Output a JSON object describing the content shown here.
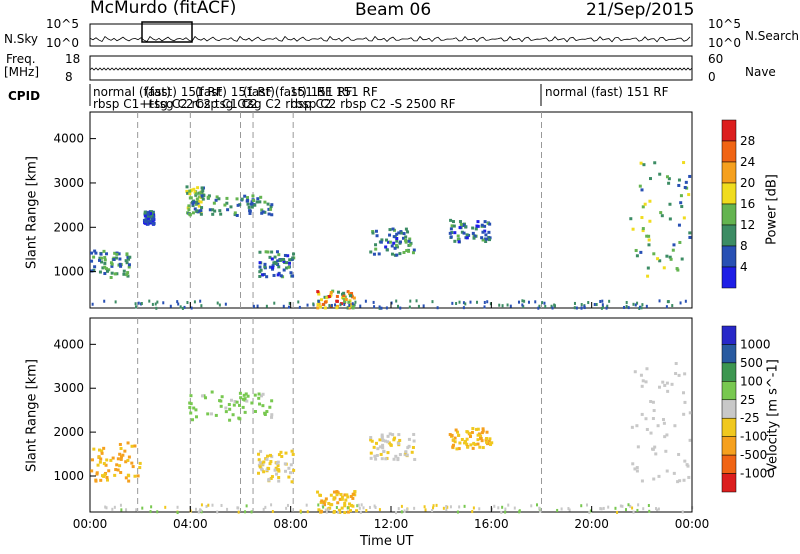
{
  "header": {
    "station": "McMurdo (fitACF)",
    "beam": "Beam 06",
    "date": "21/Sep/2015"
  },
  "strip_labels": {
    "nsky": "N.Sky",
    "nsearch": "N.Search",
    "freq_top": "Freq.",
    "freq_unit": "[MHz]",
    "nave": "Nave",
    "cpid": "CPID",
    "nsky_ticks": [
      "10^5",
      "10^0"
    ],
    "nsearch_ticks": [
      "10^5",
      "10^0"
    ],
    "freq_ticks": [
      "18",
      "8"
    ],
    "nave_ticks": [
      "60",
      "0"
    ]
  },
  "cpid_segments": [
    {
      "line1": "normal (fast)",
      "line2": "rbsp C1+tsg C2 rbsp C1 C2"
    },
    {
      "line1": "(fast) 151 RF",
      "line2": "+tsg C2"
    },
    {
      "line1": "(fast) 151 RF",
      "line2": "C2 tsg C2"
    },
    {
      "line1": "(fast)(fast) 151 RF",
      "line2": "tsg C2 rbsp C2"
    },
    {
      "line1": "151 RF 151 RF",
      "line2": "rbsp C2 rbsp C2 -S 2500 RF"
    },
    {
      "line1": "normal (fast) 151 RF",
      "line2": ""
    }
  ],
  "axes": {
    "ylabel": "Slant Range [km]",
    "xlabel": "Time UT",
    "x_ticks": [
      "00:00",
      "04:00",
      "08:00",
      "12:00",
      "16:00",
      "20:00",
      "00:00"
    ],
    "y_ticks": [
      "1000",
      "2000",
      "3000",
      "4000"
    ]
  },
  "colorbars": {
    "power": {
      "label": "Power [dB]",
      "ticks": [
        "4",
        "8",
        "12",
        "16",
        "20",
        "24",
        "28"
      ],
      "colors": [
        "#1e1ee6",
        "#2850b4",
        "#3c8c64",
        "#64b450",
        "#f0dc1e",
        "#f5a01e",
        "#f06414",
        "#dc1e1e"
      ]
    },
    "velocity": {
      "label": "Velocity [m s^-1]",
      "ticks": [
        "1000",
        "500",
        "100",
        "25",
        "-25",
        "-100",
        "-500",
        "-1000"
      ],
      "colors": [
        "#2828c8",
        "#285aa0",
        "#3c9650",
        "#78c850",
        "#c8c8c8",
        "#f0c81e",
        "#f5a01e",
        "#f06414",
        "#dc1e1e"
      ]
    }
  },
  "chart_data": [
    {
      "type": "heatmap",
      "title": "Power",
      "xlabel": "Time UT",
      "ylabel": "Slant Range [km]",
      "xlim_hours": [
        0,
        24
      ],
      "ylim_km": [
        180,
        4600
      ],
      "colorbar_label": "Power [dB]",
      "colorbar_range": [
        0,
        32
      ],
      "mode_change_times_hours": [
        1.9,
        4.0,
        6.0,
        6.5,
        8.1,
        18.0
      ],
      "scatter_regions": [
        {
          "t_start": 0.0,
          "t_end": 1.6,
          "r_start": 900,
          "r_end": 1500,
          "value": 10
        },
        {
          "t_start": 2.1,
          "t_end": 2.5,
          "r_start": 2100,
          "r_end": 2400,
          "value": 6
        },
        {
          "t_start": 3.8,
          "t_end": 4.5,
          "r_start": 2300,
          "r_end": 2950,
          "value": 13
        },
        {
          "t_start": 4.6,
          "t_end": 7.2,
          "r_start": 2300,
          "r_end": 2750,
          "value": 10
        },
        {
          "t_start": 6.7,
          "t_end": 8.1,
          "r_start": 900,
          "r_end": 1500,
          "value": 8
        },
        {
          "t_start": 9.0,
          "t_end": 10.5,
          "r_start": 200,
          "r_end": 600,
          "value": 20
        },
        {
          "t_start": 11.1,
          "t_end": 12.9,
          "r_start": 1400,
          "r_end": 2000,
          "value": 9
        },
        {
          "t_start": 14.3,
          "t_end": 15.9,
          "r_start": 1700,
          "r_end": 2200,
          "value": 8
        },
        {
          "t_start": 21.5,
          "t_end": 23.9,
          "r_start": 900,
          "r_end": 3600,
          "value": 12
        }
      ]
    },
    {
      "type": "heatmap",
      "title": "Velocity",
      "xlabel": "Time UT",
      "ylabel": "Slant Range [km]",
      "xlim_hours": [
        0,
        24
      ],
      "ylim_km": [
        180,
        4600
      ],
      "colorbar_label": "Velocity [m s^-1]",
      "colorbar_range": [
        -1000,
        1000
      ],
      "mode_change_times_hours": [
        1.9,
        4.0,
        6.0,
        6.5,
        8.1,
        18.0
      ],
      "scatter_regions": [
        {
          "t_start": 0.0,
          "t_end": 2.0,
          "r_start": 900,
          "r_end": 1800,
          "value": -400
        },
        {
          "t_start": 3.8,
          "t_end": 7.2,
          "r_start": 2300,
          "r_end": 2950,
          "value": 150
        },
        {
          "t_start": 6.6,
          "t_end": 8.1,
          "r_start": 900,
          "r_end": 1600,
          "value": -120
        },
        {
          "t_start": 9.0,
          "t_end": 10.6,
          "r_start": 200,
          "r_end": 700,
          "value": -300
        },
        {
          "t_start": 11.1,
          "t_end": 12.9,
          "r_start": 1400,
          "r_end": 2000,
          "value": -100
        },
        {
          "t_start": 14.3,
          "t_end": 16.0,
          "r_start": 1650,
          "r_end": 2150,
          "value": -300
        },
        {
          "t_start": 21.5,
          "t_end": 23.9,
          "r_start": 900,
          "r_end": 3600,
          "value": -60
        }
      ]
    }
  ]
}
